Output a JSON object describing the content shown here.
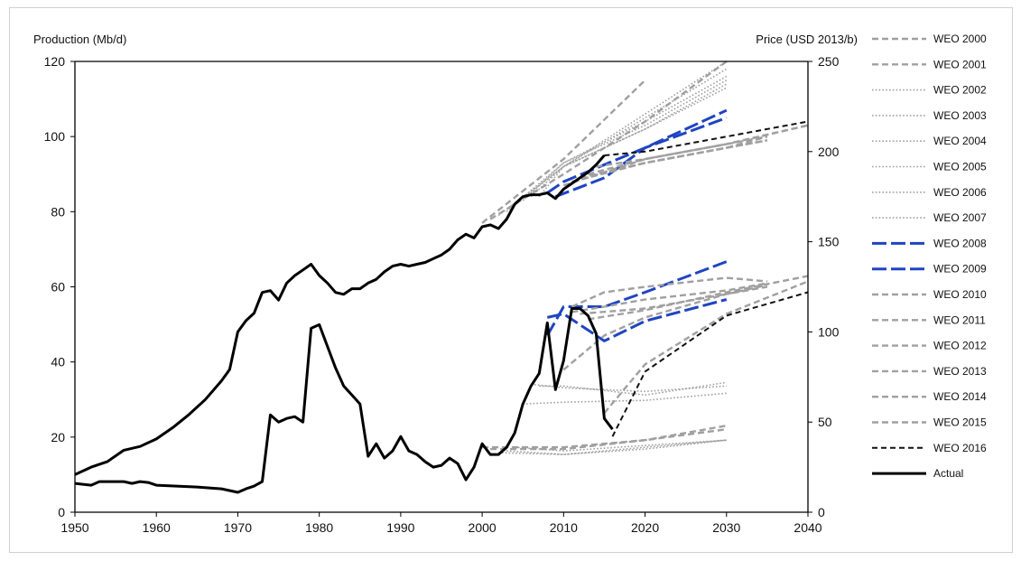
{
  "chart_data": {
    "type": "line",
    "y_axis_left": {
      "label": "Production (Mb/d)",
      "range": [
        0,
        120
      ],
      "ticks": [
        0,
        20,
        40,
        60,
        80,
        100,
        120
      ]
    },
    "y_axis_right": {
      "label": "Price (USD 2013/b)",
      "range": [
        0,
        250
      ],
      "ticks": [
        0,
        50,
        100,
        150,
        200,
        250
      ]
    },
    "x_axis": {
      "range": [
        1950,
        2040
      ],
      "ticks": [
        1950,
        1960,
        1970,
        1980,
        1990,
        2000,
        2010,
        2020,
        2030,
        2040
      ]
    },
    "grid": false,
    "legend_position": "right",
    "series": [
      {
        "name": "WEO 2000",
        "style": "dash",
        "color": "#a0a0a0",
        "production": [
          [
            2000,
            77
          ],
          [
            2010,
            94
          ],
          [
            2020,
            115
          ]
        ],
        "price": [
          [
            2000,
            36
          ],
          [
            2010,
            36
          ],
          [
            2020,
            40
          ],
          [
            2030,
            48
          ]
        ]
      },
      {
        "name": "WEO 2001",
        "style": "dash",
        "color": "#a0a0a0",
        "production": [
          [
            2001,
            78
          ],
          [
            2010,
            90
          ],
          [
            2020,
            104
          ],
          [
            2030,
            120
          ]
        ],
        "price": [
          [
            2001,
            35
          ],
          [
            2010,
            35
          ],
          [
            2020,
            40
          ],
          [
            2030,
            46
          ]
        ]
      },
      {
        "name": "WEO 2002",
        "style": "dot",
        "color": "#a0a0a0",
        "production": [
          [
            2002,
            79
          ],
          [
            2010,
            92
          ],
          [
            2020,
            106
          ],
          [
            2030,
            120
          ]
        ],
        "price": [
          [
            2002,
            33
          ],
          [
            2010,
            32
          ],
          [
            2020,
            35
          ],
          [
            2030,
            40
          ]
        ]
      },
      {
        "name": "WEO 2003",
        "style": "dot",
        "color": "#a0a0a0",
        "production": [
          [
            2003,
            80
          ],
          [
            2010,
            92
          ],
          [
            2020,
            105
          ],
          [
            2030,
            118
          ]
        ],
        "price": [
          [
            2003,
            34
          ],
          [
            2010,
            32
          ],
          [
            2020,
            36
          ],
          [
            2030,
            40
          ]
        ]
      },
      {
        "name": "WEO 2004",
        "style": "dot",
        "color": "#a0a0a0",
        "production": [
          [
            2004,
            82
          ],
          [
            2010,
            93
          ],
          [
            2020,
            104
          ],
          [
            2030,
            116
          ]
        ],
        "price": [
          [
            2004,
            36
          ],
          [
            2010,
            34
          ],
          [
            2020,
            37
          ],
          [
            2030,
            40
          ]
        ]
      },
      {
        "name": "WEO 2005",
        "style": "dot",
        "color": "#a0a0a0",
        "production": [
          [
            2005,
            83
          ],
          [
            2010,
            93
          ],
          [
            2020,
            103
          ],
          [
            2030,
            115
          ]
        ],
        "price": [
          [
            2005,
            60
          ],
          [
            2010,
            61
          ],
          [
            2020,
            62
          ],
          [
            2030,
            66
          ]
        ]
      },
      {
        "name": "WEO 2006",
        "style": "dot",
        "color": "#a0a0a0",
        "production": [
          [
            2006,
            84
          ],
          [
            2010,
            92
          ],
          [
            2020,
            102
          ],
          [
            2030,
            113
          ]
        ],
        "price": [
          [
            2006,
            71
          ],
          [
            2010,
            69
          ],
          [
            2020,
            67
          ],
          [
            2030,
            70
          ]
        ]
      },
      {
        "name": "WEO 2007",
        "style": "dot",
        "color": "#a0a0a0",
        "production": [
          [
            2007,
            84
          ],
          [
            2010,
            92
          ],
          [
            2020,
            102
          ],
          [
            2030,
            114
          ]
        ],
        "price": [
          [
            2007,
            70
          ],
          [
            2010,
            70
          ],
          [
            2020,
            65
          ],
          [
            2030,
            72
          ]
        ]
      },
      {
        "name": "WEO 2008",
        "style": "longdash",
        "color": "#1f44c2",
        "production": [
          [
            2008,
            85
          ],
          [
            2010,
            88
          ],
          [
            2020,
            97
          ],
          [
            2030,
            107
          ]
        ],
        "price": [
          [
            2008,
            98
          ],
          [
            2010,
            114
          ],
          [
            2015,
            114
          ],
          [
            2020,
            122
          ],
          [
            2030,
            139
          ]
        ]
      },
      {
        "name": "WEO 2009",
        "style": "longdash",
        "color": "#1f44c2",
        "production": [
          [
            2009,
            84
          ],
          [
            2015,
            89
          ],
          [
            2020,
            97
          ],
          [
            2030,
            105
          ]
        ],
        "price": [
          [
            2008,
            108
          ],
          [
            2010,
            110
          ],
          [
            2015,
            95
          ],
          [
            2020,
            106
          ],
          [
            2030,
            118
          ]
        ]
      },
      {
        "name": "WEO 2010",
        "style": "dash",
        "color": "#a0a0a0",
        "production": [
          [
            2010,
            87
          ],
          [
            2020,
            94
          ],
          [
            2030,
            98
          ],
          [
            2035,
            100
          ]
        ],
        "price": [
          [
            2010,
            79
          ],
          [
            2015,
            98
          ],
          [
            2020,
            108
          ],
          [
            2030,
            121
          ],
          [
            2035,
            125
          ]
        ]
      },
      {
        "name": "WEO 2011",
        "style": "dash",
        "color": "#a0a0a0",
        "production": [
          [
            2011,
            88
          ],
          [
            2020,
            93
          ],
          [
            2030,
            97
          ],
          [
            2035,
            99
          ]
        ],
        "price": [
          [
            2011,
            111
          ],
          [
            2015,
            114
          ],
          [
            2020,
            118
          ],
          [
            2030,
            123
          ],
          [
            2035,
            127
          ]
        ]
      },
      {
        "name": "WEO 2012",
        "style": "dash",
        "color": "#a0a0a0",
        "production": [
          [
            2011,
            88
          ],
          [
            2020,
            93
          ],
          [
            2030,
            97
          ],
          [
            2035,
            100
          ]
        ],
        "price": [
          [
            2011,
            114
          ],
          [
            2015,
            122
          ],
          [
            2020,
            125
          ],
          [
            2030,
            130
          ],
          [
            2035,
            128
          ]
        ]
      },
      {
        "name": "WEO 2013",
        "style": "dash",
        "color": "#a0a0a0",
        "production": [
          [
            2012,
            89
          ],
          [
            2020,
            93
          ],
          [
            2030,
            97
          ],
          [
            2035,
            99
          ]
        ],
        "price": [
          [
            2012,
            110
          ],
          [
            2020,
            113
          ],
          [
            2030,
            121
          ],
          [
            2035,
            126
          ]
        ]
      },
      {
        "name": "WEO 2014",
        "style": "dash",
        "color": "#a0a0a0",
        "production": [
          [
            2013,
            90
          ],
          [
            2020,
            94
          ],
          [
            2030,
            98
          ],
          [
            2040,
            103
          ]
        ],
        "price": [
          [
            2013,
            107
          ],
          [
            2020,
            112
          ],
          [
            2030,
            122
          ],
          [
            2040,
            131
          ]
        ]
      },
      {
        "name": "WEO 2015",
        "style": "dash",
        "color": "#a0a0a0",
        "production": [
          [
            2014,
            92
          ],
          [
            2020,
            94
          ],
          [
            2030,
            98
          ],
          [
            2040,
            103
          ]
        ],
        "price": [
          [
            2015,
            55
          ],
          [
            2020,
            82
          ],
          [
            2030,
            110
          ],
          [
            2040,
            128
          ]
        ]
      },
      {
        "name": "WEO 2016",
        "style": "dash",
        "color": "#111111",
        "production": [
          [
            2015,
            95
          ],
          [
            2020,
            96
          ],
          [
            2030,
            100
          ],
          [
            2040,
            104
          ]
        ],
        "price": [
          [
            2016,
            42
          ],
          [
            2020,
            78
          ],
          [
            2030,
            109
          ],
          [
            2040,
            122
          ]
        ]
      },
      {
        "name": "Actual",
        "style": "solid",
        "color": "#000000",
        "production": [
          [
            1950,
            10
          ],
          [
            1952,
            12
          ],
          [
            1954,
            13.5
          ],
          [
            1955,
            15
          ],
          [
            1956,
            16.5
          ],
          [
            1958,
            17.5
          ],
          [
            1960,
            19.5
          ],
          [
            1962,
            22.5
          ],
          [
            1964,
            26
          ],
          [
            1966,
            30
          ],
          [
            1968,
            35
          ],
          [
            1969,
            38
          ],
          [
            1970,
            48
          ],
          [
            1971,
            51
          ],
          [
            1972,
            53
          ],
          [
            1973,
            58.5
          ],
          [
            1974,
            59
          ],
          [
            1975,
            56.5
          ],
          [
            1976,
            61
          ],
          [
            1977,
            63
          ],
          [
            1978,
            64.5
          ],
          [
            1979,
            66
          ],
          [
            1980,
            63
          ],
          [
            1981,
            61
          ],
          [
            1982,
            58.5
          ],
          [
            1983,
            58
          ],
          [
            1984,
            59.5
          ],
          [
            1985,
            59.5
          ],
          [
            1986,
            61
          ],
          [
            1987,
            62
          ],
          [
            1988,
            64
          ],
          [
            1989,
            65.5
          ],
          [
            1990,
            66
          ],
          [
            1991,
            65.5
          ],
          [
            1992,
            66
          ],
          [
            1993,
            66.5
          ],
          [
            1994,
            67.5
          ],
          [
            1995,
            68.5
          ],
          [
            1996,
            70
          ],
          [
            1997,
            72.5
          ],
          [
            1998,
            74
          ],
          [
            1999,
            73
          ],
          [
            2000,
            76
          ],
          [
            2001,
            76.5
          ],
          [
            2002,
            75.5
          ],
          [
            2003,
            78
          ],
          [
            2004,
            82
          ],
          [
            2005,
            84
          ],
          [
            2006,
            84.5
          ],
          [
            2007,
            84.5
          ],
          [
            2008,
            85
          ],
          [
            2009,
            83.5
          ],
          [
            2010,
            86
          ],
          [
            2011,
            87.5
          ],
          [
            2012,
            89
          ],
          [
            2013,
            90.5
          ],
          [
            2014,
            92.5
          ],
          [
            2015,
            95
          ]
        ],
        "price": [
          [
            1950,
            16
          ],
          [
            1952,
            15
          ],
          [
            1953,
            17
          ],
          [
            1956,
            17
          ],
          [
            1957,
            16
          ],
          [
            1958,
            17
          ],
          [
            1959,
            16.5
          ],
          [
            1960,
            15
          ],
          [
            1965,
            14
          ],
          [
            1968,
            13
          ],
          [
            1970,
            11
          ],
          [
            1971,
            13
          ],
          [
            1972,
            14.5
          ],
          [
            1973,
            17
          ],
          [
            1974,
            54
          ],
          [
            1975,
            50
          ],
          [
            1976,
            52
          ],
          [
            1977,
            53
          ],
          [
            1978,
            50
          ],
          [
            1979,
            102
          ],
          [
            1980,
            104
          ],
          [
            1981,
            92
          ],
          [
            1982,
            80
          ],
          [
            1983,
            70
          ],
          [
            1984,
            65
          ],
          [
            1985,
            60
          ],
          [
            1986,
            31
          ],
          [
            1987,
            38
          ],
          [
            1988,
            30
          ],
          [
            1989,
            34
          ],
          [
            1990,
            42
          ],
          [
            1991,
            34
          ],
          [
            1992,
            32
          ],
          [
            1993,
            28
          ],
          [
            1994,
            25
          ],
          [
            1995,
            26
          ],
          [
            1996,
            30
          ],
          [
            1997,
            27
          ],
          [
            1998,
            18
          ],
          [
            1999,
            25
          ],
          [
            2000,
            38
          ],
          [
            2001,
            32
          ],
          [
            2002,
            32
          ],
          [
            2003,
            36
          ],
          [
            2004,
            44
          ],
          [
            2005,
            60
          ],
          [
            2006,
            70
          ],
          [
            2007,
            77
          ],
          [
            2008,
            105
          ],
          [
            2009,
            68
          ],
          [
            2010,
            84
          ],
          [
            2011,
            113
          ],
          [
            2012,
            113
          ],
          [
            2013,
            109
          ],
          [
            2014,
            99
          ],
          [
            2015,
            52
          ],
          [
            2016,
            46
          ]
        ]
      }
    ]
  }
}
